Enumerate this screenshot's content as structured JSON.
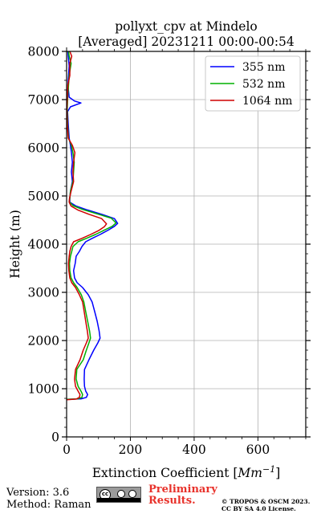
{
  "chart_data": {
    "type": "line",
    "title_line1": "pollyxt_cpv at Mindelo",
    "title_line2": "[Averaged] 20231211 00:00-00:54",
    "xlabel_prefix": "Extinction Coefficient [",
    "xlabel_unit_base": "Mm",
    "xlabel_unit_exp": "−1",
    "xlabel_suffix": "]",
    "ylabel": "Height (m)",
    "xlim": [
      0,
      750
    ],
    "ylim": [
      0,
      8000
    ],
    "x_ticks": [
      0,
      200,
      400,
      600
    ],
    "x_tick_labels": [
      "0",
      "200",
      "400",
      "600"
    ],
    "y_ticks": [
      0,
      1000,
      2000,
      3000,
      4000,
      5000,
      6000,
      7000,
      8000
    ],
    "y_tick_labels": [
      "0",
      "1000",
      "2000",
      "3000",
      "4000",
      "5000",
      "6000",
      "7000",
      "8000"
    ],
    "grid": true,
    "legend_position": "top-right",
    "series": [
      {
        "name": "355 nm",
        "color": "#0000ff",
        "points": [
          [
            0,
            780
          ],
          [
            45,
            790
          ],
          [
            62,
            820
          ],
          [
            66,
            880
          ],
          [
            60,
            950
          ],
          [
            56,
            1050
          ],
          [
            55,
            1200
          ],
          [
            56,
            1400
          ],
          [
            70,
            1600
          ],
          [
            85,
            1800
          ],
          [
            98,
            1950
          ],
          [
            105,
            2050
          ],
          [
            102,
            2200
          ],
          [
            96,
            2400
          ],
          [
            88,
            2600
          ],
          [
            80,
            2800
          ],
          [
            68,
            2950
          ],
          [
            50,
            3100
          ],
          [
            33,
            3200
          ],
          [
            25,
            3300
          ],
          [
            22,
            3450
          ],
          [
            27,
            3600
          ],
          [
            30,
            3750
          ],
          [
            40,
            3850
          ],
          [
            48,
            3950
          ],
          [
            60,
            4050
          ],
          [
            80,
            4120
          ],
          [
            105,
            4200
          ],
          [
            130,
            4290
          ],
          [
            150,
            4370
          ],
          [
            160,
            4430
          ],
          [
            150,
            4530
          ],
          [
            110,
            4620
          ],
          [
            65,
            4710
          ],
          [
            30,
            4790
          ],
          [
            10,
            4870
          ],
          [
            10,
            4950
          ],
          [
            12,
            5100
          ],
          [
            18,
            5300
          ],
          [
            15,
            5500
          ],
          [
            18,
            5700
          ],
          [
            15,
            5900
          ],
          [
            12,
            6050
          ],
          [
            8,
            6200
          ],
          [
            5,
            6500
          ],
          [
            3,
            6750
          ],
          [
            12,
            6850
          ],
          [
            45,
            6930
          ],
          [
            25,
            6970
          ],
          [
            8,
            7050
          ],
          [
            4,
            7300
          ],
          [
            6,
            7500
          ],
          [
            8,
            7700
          ],
          [
            5,
            7900
          ],
          [
            4,
            8000
          ]
        ]
      },
      {
        "name": "532 nm",
        "color": "#00b000",
        "points": [
          [
            0,
            780
          ],
          [
            35,
            790
          ],
          [
            48,
            820
          ],
          [
            50,
            880
          ],
          [
            45,
            950
          ],
          [
            36,
            1050
          ],
          [
            30,
            1200
          ],
          [
            32,
            1400
          ],
          [
            52,
            1600
          ],
          [
            62,
            1800
          ],
          [
            70,
            1950
          ],
          [
            75,
            2050
          ],
          [
            72,
            2200
          ],
          [
            66,
            2400
          ],
          [
            60,
            2600
          ],
          [
            54,
            2800
          ],
          [
            46,
            2950
          ],
          [
            33,
            3100
          ],
          [
            22,
            3200
          ],
          [
            14,
            3300
          ],
          [
            10,
            3450
          ],
          [
            9,
            3600
          ],
          [
            12,
            3750
          ],
          [
            16,
            3850
          ],
          [
            20,
            3950
          ],
          [
            36,
            4050
          ],
          [
            62,
            4120
          ],
          [
            90,
            4200
          ],
          [
            118,
            4290
          ],
          [
            143,
            4370
          ],
          [
            155,
            4440
          ],
          [
            140,
            4540
          ],
          [
            95,
            4630
          ],
          [
            50,
            4720
          ],
          [
            20,
            4800
          ],
          [
            8,
            4880
          ],
          [
            10,
            4950
          ],
          [
            12,
            5100
          ],
          [
            20,
            5300
          ],
          [
            22,
            5500
          ],
          [
            24,
            5700
          ],
          [
            20,
            5900
          ],
          [
            15,
            6050
          ],
          [
            6,
            6200
          ],
          [
            3,
            6500
          ],
          [
            2,
            6800
          ],
          [
            3,
            7000
          ],
          [
            6,
            7300
          ],
          [
            8,
            7500
          ],
          [
            14,
            7750
          ],
          [
            8,
            7900
          ],
          [
            6,
            8000
          ]
        ]
      },
      {
        "name": "1064 nm",
        "color": "#d00000",
        "points": [
          [
            0,
            770
          ],
          [
            30,
            785
          ],
          [
            40,
            820
          ],
          [
            42,
            880
          ],
          [
            36,
            950
          ],
          [
            28,
            1050
          ],
          [
            25,
            1200
          ],
          [
            28,
            1400
          ],
          [
            42,
            1600
          ],
          [
            52,
            1800
          ],
          [
            62,
            1950
          ],
          [
            68,
            2050
          ],
          [
            65,
            2200
          ],
          [
            60,
            2400
          ],
          [
            55,
            2600
          ],
          [
            50,
            2800
          ],
          [
            40,
            2950
          ],
          [
            28,
            3100
          ],
          [
            16,
            3200
          ],
          [
            10,
            3300
          ],
          [
            7,
            3450
          ],
          [
            6,
            3600
          ],
          [
            8,
            3750
          ],
          [
            10,
            3850
          ],
          [
            14,
            3950
          ],
          [
            22,
            4050
          ],
          [
            48,
            4120
          ],
          [
            75,
            4200
          ],
          [
            100,
            4280
          ],
          [
            118,
            4360
          ],
          [
            125,
            4420
          ],
          [
            110,
            4530
          ],
          [
            70,
            4620
          ],
          [
            35,
            4710
          ],
          [
            14,
            4790
          ],
          [
            8,
            4870
          ],
          [
            9,
            4950
          ],
          [
            14,
            5100
          ],
          [
            22,
            5300
          ],
          [
            20,
            5500
          ],
          [
            22,
            5700
          ],
          [
            26,
            5900
          ],
          [
            18,
            6050
          ],
          [
            5,
            6200
          ],
          [
            2,
            6500
          ],
          [
            1,
            6800
          ],
          [
            2,
            7000
          ],
          [
            4,
            7300
          ],
          [
            10,
            7500
          ],
          [
            10,
            7750
          ],
          [
            16,
            7900
          ],
          [
            10,
            8000
          ]
        ]
      }
    ]
  },
  "footer": {
    "version": "Version: 3.6",
    "method": "Method: Raman",
    "preliminary_line1": "Preliminary",
    "preliminary_line2": "Results.",
    "copyright_line1": "© TROPOS & OSCM 2023.",
    "copyright_line2": "CC BY SA 4.0 License.",
    "license_icon": "cc-by-sa-icon"
  }
}
